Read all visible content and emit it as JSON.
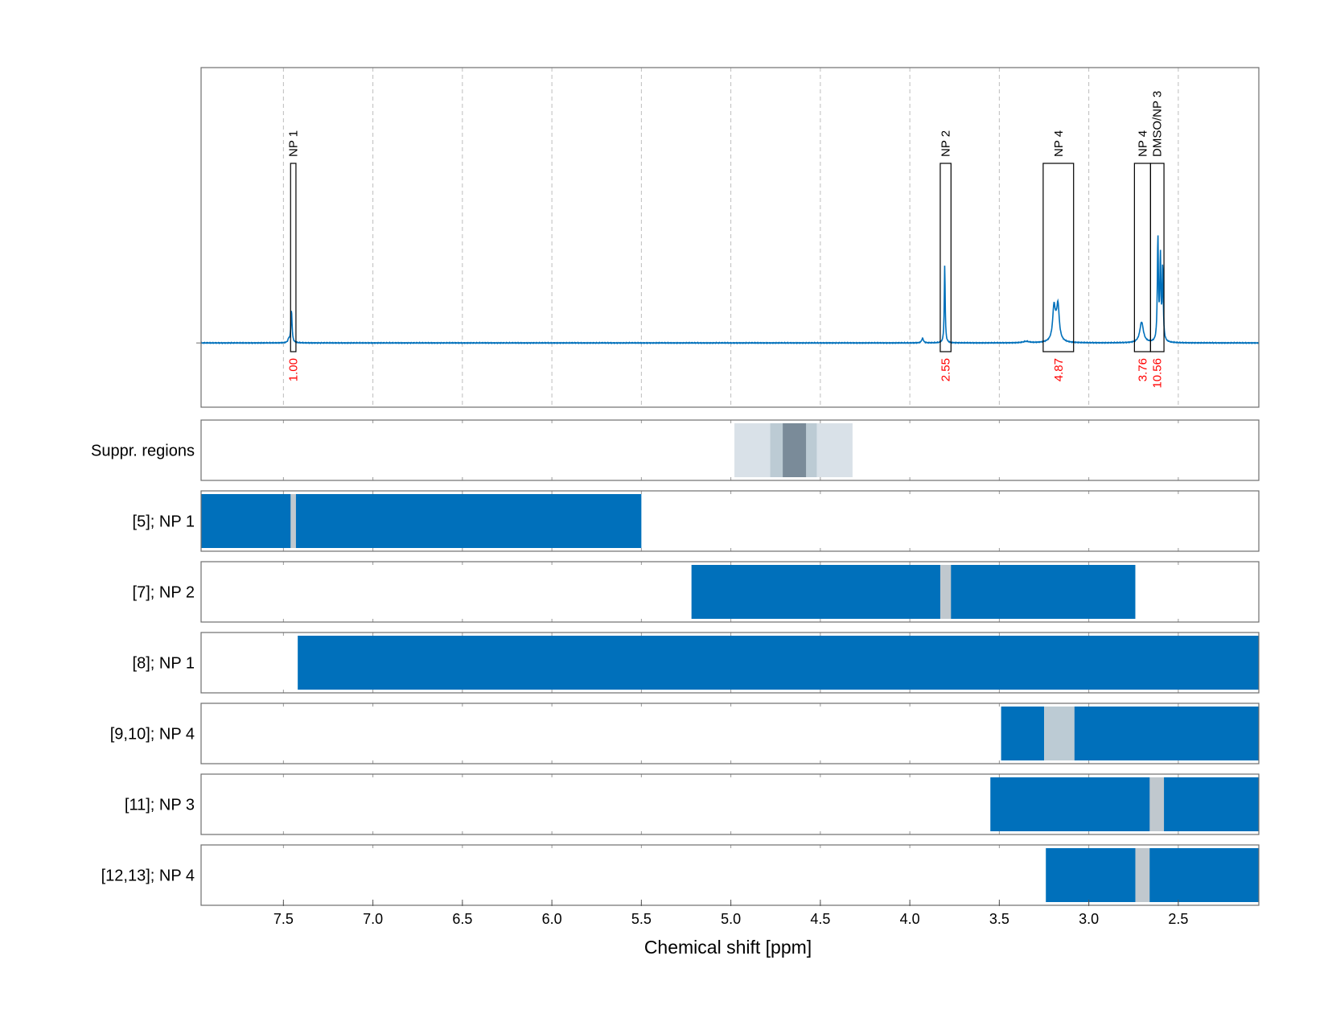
{
  "chart_data": {
    "type": "nmr-spectrum-with-region-tracks",
    "xlabel": "Chemical shift [ppm]",
    "x_reversed": true,
    "xlim": [
      7.96,
      2.05
    ],
    "x_ticks": [
      7.5,
      7.0,
      6.5,
      6.0,
      5.5,
      5.0,
      4.5,
      4.0,
      3.5,
      3.0,
      2.5
    ],
    "x_tick_labels": [
      "7.5",
      "7.0",
      "6.5",
      "6.0",
      "5.5",
      "5.0",
      "4.5",
      "4.0",
      "3.5",
      "3.0",
      "2.5"
    ],
    "grid": "vertical-dashed",
    "spectrum": {
      "color": "#0070bb",
      "baseline": 0.0,
      "ylim": [
        -0.28,
        1.2
      ],
      "peaks": [
        {
          "center": 7.455,
          "height": 0.14,
          "width": 0.004
        },
        {
          "center": 7.47,
          "height": 0.015,
          "width": 0.005
        },
        {
          "center": 3.929,
          "height": 0.02,
          "width": 0.006
        },
        {
          "center": 3.805,
          "height": 0.34,
          "width": 0.003
        },
        {
          "center": 3.35,
          "height": 0.006,
          "width": 0.02
        },
        {
          "center": 3.195,
          "height": 0.12,
          "width": 0.008
        },
        {
          "center": 3.172,
          "height": 0.13,
          "width": 0.008
        },
        {
          "center": 3.184,
          "height": 0.06,
          "width": 0.016
        },
        {
          "center": 2.705,
          "height": 0.09,
          "width": 0.012
        },
        {
          "center": 2.614,
          "height": 0.45,
          "width": 0.0035
        },
        {
          "center": 2.6,
          "height": 0.36,
          "width": 0.0035
        },
        {
          "center": 2.587,
          "height": 0.32,
          "width": 0.0035
        }
      ]
    },
    "integration_regions": [
      {
        "label": "NP 1",
        "from": 7.46,
        "to": 7.43,
        "value": "1.00"
      },
      {
        "label": "NP 2",
        "from": 3.83,
        "to": 3.77,
        "value": "2.55"
      },
      {
        "label": "NP 4",
        "from": 3.255,
        "to": 3.085,
        "value": "4.87"
      },
      {
        "label": "NP 4",
        "from": 2.745,
        "to": 2.655,
        "value": "3.76"
      },
      {
        "label": "DMSO/NP 3",
        "from": 2.655,
        "to": 2.58,
        "value": "10.56"
      }
    ],
    "label_color": "#000000",
    "value_color": "#ff0000",
    "tracks": [
      {
        "label": "Suppr. regions",
        "bars": [
          {
            "from": 4.98,
            "to": 4.32,
            "color": "#d9e1e8"
          },
          {
            "from": 4.78,
            "to": 4.52,
            "color": "#bccbd4"
          },
          {
            "from": 4.71,
            "to": 4.58,
            "color": "#7a8b99"
          }
        ]
      },
      {
        "label": "[5]; NP 1",
        "bars": [
          {
            "from": 7.96,
            "to": 5.5,
            "color": "#0070bb"
          },
          {
            "from": 7.46,
            "to": 7.43,
            "color": "#c0c8ce"
          }
        ]
      },
      {
        "label": "[7]; NP 2",
        "bars": [
          {
            "from": 5.22,
            "to": 2.74,
            "color": "#0070bb"
          },
          {
            "from": 3.83,
            "to": 3.77,
            "color": "#c0c8ce"
          }
        ]
      },
      {
        "label": "[8]; NP 1",
        "bars": [
          {
            "from": 7.42,
            "to": 2.05,
            "color": "#0070bb"
          }
        ]
      },
      {
        "label": "[9,10]; NP 4",
        "bars": [
          {
            "from": 3.49,
            "to": 2.05,
            "color": "#0070bb"
          },
          {
            "from": 3.25,
            "to": 3.08,
            "color": "#bccbd4"
          }
        ]
      },
      {
        "label": "[11]; NP 3",
        "bars": [
          {
            "from": 3.55,
            "to": 2.05,
            "color": "#0070bb"
          },
          {
            "from": 2.66,
            "to": 2.58,
            "color": "#c0c8ce"
          }
        ]
      },
      {
        "label": "[12,13]; NP 4",
        "bars": [
          {
            "from": 3.24,
            "to": 2.05,
            "color": "#0070bb"
          },
          {
            "from": 2.74,
            "to": 2.66,
            "color": "#c0c8ce"
          }
        ]
      }
    ]
  }
}
